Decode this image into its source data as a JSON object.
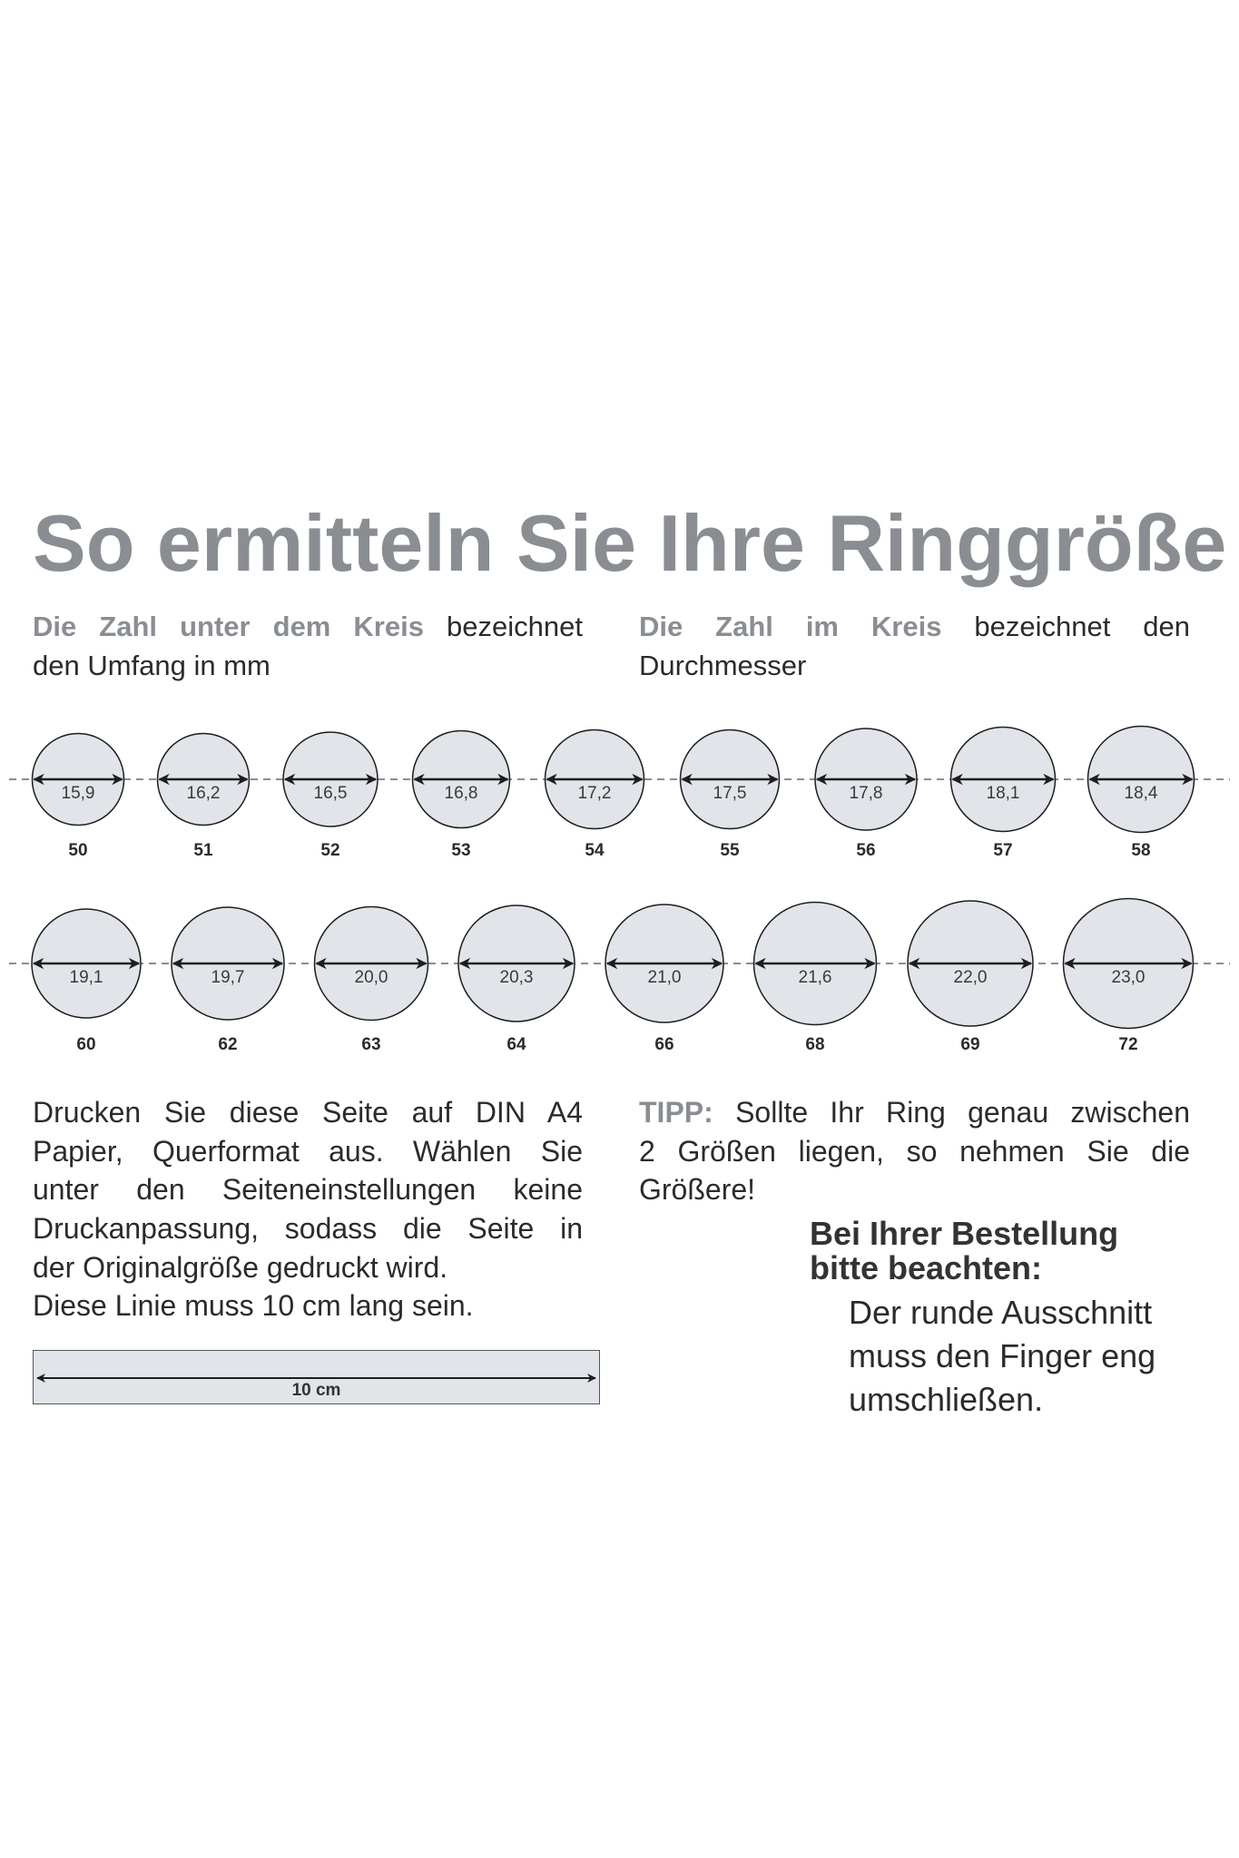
{
  "title": "So ermitteln Sie Ihre Ringgröße",
  "intro_left": {
    "highlight": "Die Zahl unter dem Kreis",
    "rest": "bezeichnet",
    "line2": "den Umfang in mm"
  },
  "intro_right": {
    "highlight": "Die Zahl im Kreis",
    "rest": "bezeichnet den",
    "line2": "Durchmesser"
  },
  "rings_row1": [
    {
      "diameter": "15,9",
      "size": "50"
    },
    {
      "diameter": "16,2",
      "size": "51"
    },
    {
      "diameter": "16,5",
      "size": "52"
    },
    {
      "diameter": "16,8",
      "size": "53"
    },
    {
      "diameter": "17,2",
      "size": "54"
    },
    {
      "diameter": "17,5",
      "size": "55"
    },
    {
      "diameter": "17,8",
      "size": "56"
    },
    {
      "diameter": "18,1",
      "size": "57"
    },
    {
      "diameter": "18,4",
      "size": "58"
    }
  ],
  "rings_row2": [
    {
      "diameter": "19,1",
      "size": "60"
    },
    {
      "diameter": "19,7",
      "size": "62"
    },
    {
      "diameter": "20,0",
      "size": "63"
    },
    {
      "diameter": "20,3",
      "size": "64"
    },
    {
      "diameter": "21,0",
      "size": "66"
    },
    {
      "diameter": "21,6",
      "size": "68"
    },
    {
      "diameter": "22,0",
      "size": "69"
    },
    {
      "diameter": "23,0",
      "size": "72"
    }
  ],
  "print_instructions": {
    "lines": [
      "Drucken Sie diese Seite auf DIN A4",
      "Papier, Querformat aus. Wählen Sie",
      "unter den Seiteneinstellungen keine",
      "Druckanpassung, sodass die Seite in",
      "der Originalgröße gedruckt wird.",
      "Diese Linie muss 10 cm lang sein."
    ]
  },
  "ruler": {
    "label": "10 cm"
  },
  "tip": {
    "label": "TIPP:",
    "line1": "Sollte Ihr Ring genau zwischen",
    "line2": "2 Größen liegen, so nehmen Sie die",
    "line3": "Größere!"
  },
  "order_note": {
    "heading1": "Bei Ihrer Bestellung",
    "heading2": "bitte beachten:",
    "lines": [
      "Der runde Ausschnitt",
      "muss den Finger eng",
      "umschließen."
    ]
  },
  "colors": {
    "accent_gray": "#8a8e93",
    "circle_fill": "#e1e4e8",
    "text": "#2b2b2d"
  }
}
